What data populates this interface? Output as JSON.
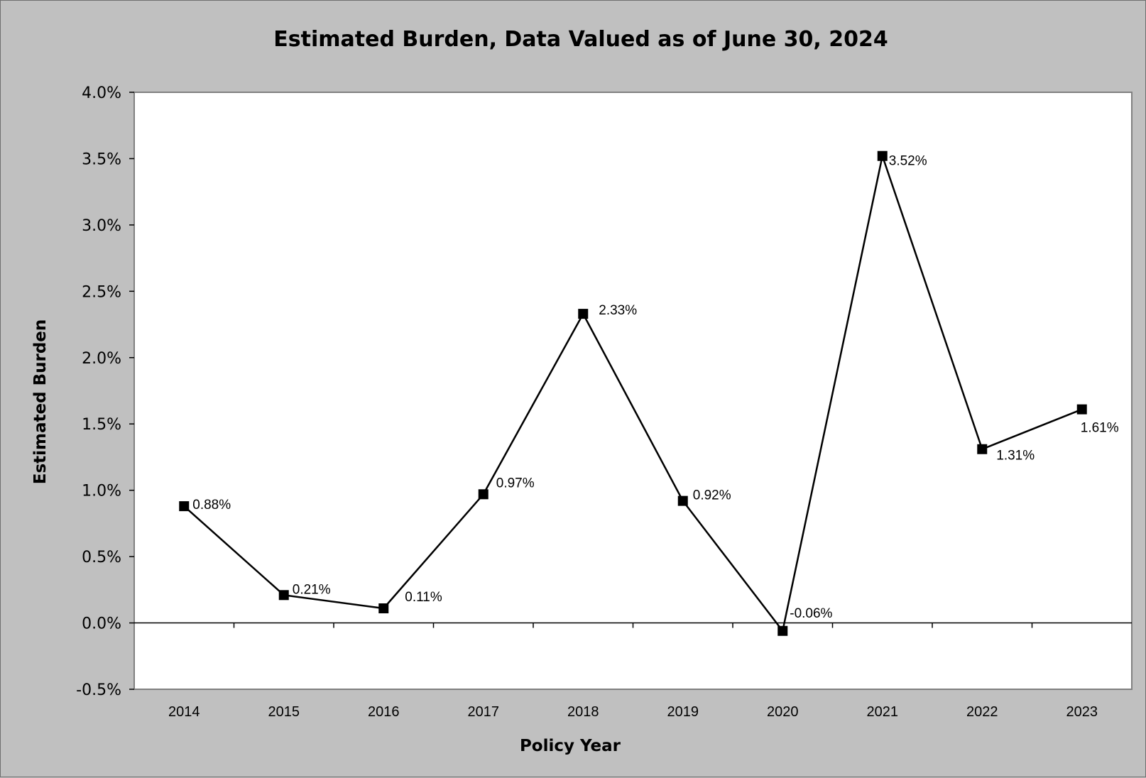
{
  "chart_data": {
    "type": "line",
    "title": "Estimated Burden, Data Valued as of June 30, 2024",
    "xlabel": "Policy Year",
    "ylabel": "Estimated Burden",
    "categories": [
      "2014",
      "2015",
      "2016",
      "2017",
      "2018",
      "2019",
      "2020",
      "2021",
      "2022",
      "2023"
    ],
    "series": [
      {
        "values": [
          0.88,
          0.21,
          0.11,
          0.97,
          2.33,
          0.92,
          -0.06,
          3.52,
          1.31,
          1.61
        ],
        "labels": [
          "0.88%",
          "0.21%",
          "0.11%",
          "0.97%",
          "2.33%",
          "0.92%",
          "-0.06%",
          "3.52%",
          "1.31%",
          "1.61%"
        ],
        "color": "#000000",
        "marker": "square"
      }
    ],
    "ylim": [
      -0.5,
      4.0
    ],
    "yticks": [
      4.0,
      3.5,
      3.0,
      2.5,
      2.0,
      1.5,
      1.0,
      0.5,
      0.0,
      -0.5
    ],
    "ytick_labels": [
      "4.0%",
      "3.5%",
      "3.0%",
      "2.5%",
      "2.0%",
      "1.5%",
      "1.0%",
      "0.5%",
      "0.0%",
      "-0.5%"
    ],
    "grid": false,
    "legend": "none",
    "colors": {
      "chart_background": "#c0c0c0",
      "plot_background": "#ffffff",
      "line": "#000000"
    }
  }
}
